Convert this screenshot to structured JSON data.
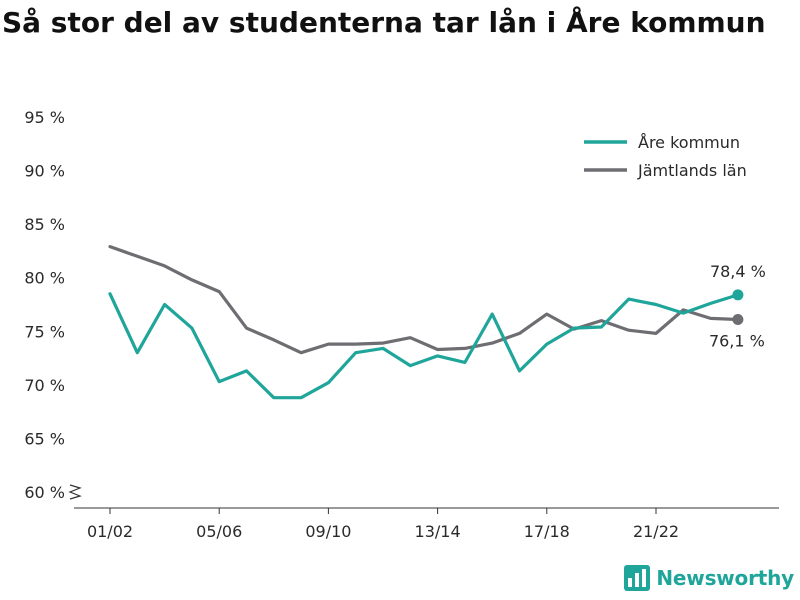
{
  "title": "Så stor del av studenterna tar lån i Åre kommun",
  "brand": {
    "name": "Newsworthy",
    "logo_icon": "bar-chart-logo-icon"
  },
  "chart_data": {
    "type": "line",
    "x": [
      "01/02",
      "02/03",
      "03/04",
      "04/05",
      "05/06",
      "06/07",
      "07/08",
      "08/09",
      "09/10",
      "10/11",
      "11/12",
      "12/13",
      "13/14",
      "14/15",
      "15/16",
      "16/17",
      "17/18",
      "18/19",
      "19/20",
      "20/21",
      "21/22",
      "22/23",
      "23/24",
      "24/25"
    ],
    "tick_labels": [
      "01/02",
      "05/06",
      "09/10",
      "13/14",
      "17/18",
      "21/22"
    ],
    "y_ticks": [
      "60 %",
      "65 %",
      "70 %",
      "75 %",
      "80 %",
      "85 %",
      "90 %",
      "95 %"
    ],
    "ylim": [
      60,
      95
    ],
    "axis_break": true,
    "grid": false,
    "legend_position": "top-right",
    "series": [
      {
        "name": "Åre kommun",
        "color": "#1fa59a",
        "values": [
          78.5,
          73.0,
          77.5,
          75.3,
          70.3,
          71.3,
          68.8,
          68.8,
          70.2,
          73.0,
          73.4,
          71.8,
          72.7,
          72.1,
          76.6,
          71.3,
          73.8,
          75.3,
          75.4,
          78.0,
          77.5,
          76.7,
          77.6,
          78.4
        ],
        "end_label": "78,4 %"
      },
      {
        "name": "Jämtlands län",
        "color": "#6e6d72",
        "values": [
          82.9,
          82.0,
          81.1,
          79.8,
          78.7,
          75.3,
          74.2,
          73.0,
          73.8,
          73.8,
          73.9,
          74.4,
          73.3,
          73.4,
          73.9,
          74.8,
          76.6,
          75.2,
          76.0,
          75.1,
          74.8,
          77.0,
          76.2,
          76.1
        ],
        "end_label": "76,1 %"
      }
    ]
  }
}
